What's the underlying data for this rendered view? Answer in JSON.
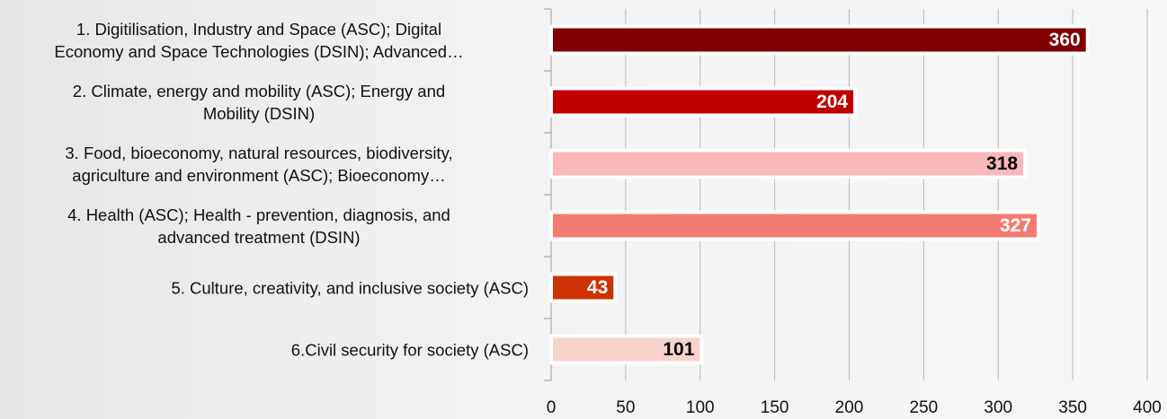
{
  "chart_data": {
    "type": "barh",
    "categories": [
      "1. Digitilisation, Industry and Space (ASC); Digital\nEconomy and Space Technologies (DSIN); Advanced…",
      "2. Climate, energy and mobility (ASC); Energy and\nMobility (DSIN)",
      "3. Food, bioeconomy, natural resources, biodiversity,\nagriculture and environment (ASC); Bioeconomy…",
      "4. Health (ASC); Health - prevention, diagnosis, and\nadvanced treatment (DSIN)",
      "5. Culture, creativity, and inclusive society (ASC)",
      "6.Civil security for society (ASC)"
    ],
    "values": [
      360,
      204,
      318,
      327,
      43,
      101
    ],
    "colors": [
      "#800000",
      "#c00000",
      "#fbb8b8",
      "#f47b70",
      "#cc3300",
      "#f8d3cb"
    ],
    "label_colors": [
      "#ffffff",
      "#ffffff",
      "#000000",
      "#ffffff",
      "#ffffff",
      "#000000"
    ],
    "xlim": [
      0,
      400
    ],
    "xticks": [
      0,
      50,
      100,
      150,
      200,
      250,
      300,
      350,
      400
    ],
    "grid": true
  }
}
